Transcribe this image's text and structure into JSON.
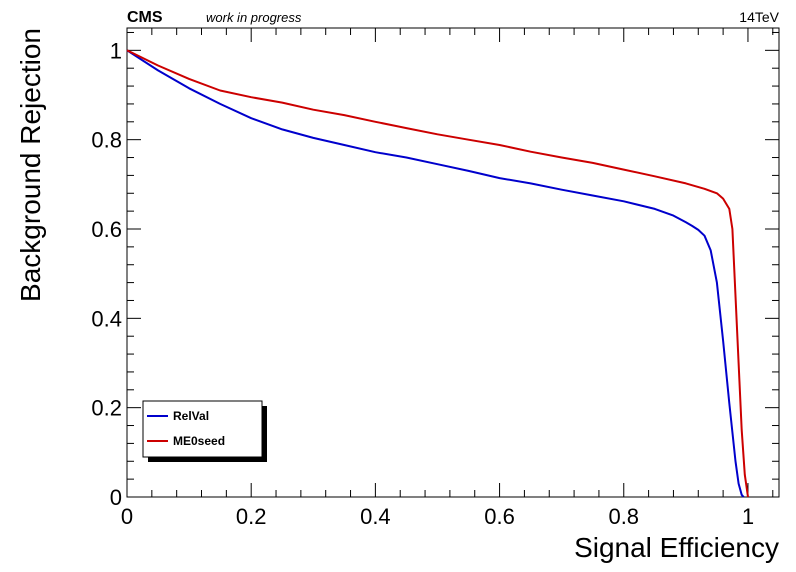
{
  "header": {
    "experiment": "CMS",
    "status": "work in progress",
    "energy": "14TeV"
  },
  "chart_data": {
    "type": "line",
    "xlabel": "Signal Efficiency",
    "ylabel": "Background Rejection",
    "xlim": [
      0,
      1.05
    ],
    "ylim": [
      0,
      1.05
    ],
    "x_ticks": [
      "0",
      "0.2",
      "0.4",
      "0.6",
      "0.8",
      "1"
    ],
    "y_ticks": [
      "0",
      "0.2",
      "0.4",
      "0.6",
      "0.8",
      "1"
    ],
    "grid": false,
    "legend_position": "bottom-left",
    "series": [
      {
        "name": "RelVal",
        "color": "#0000cc",
        "x": [
          0,
          0.05,
          0.1,
          0.15,
          0.2,
          0.25,
          0.3,
          0.35,
          0.4,
          0.45,
          0.5,
          0.55,
          0.6,
          0.65,
          0.7,
          0.75,
          0.8,
          0.85,
          0.88,
          0.9,
          0.91,
          0.92,
          0.93,
          0.94,
          0.95,
          0.96,
          0.97,
          0.98,
          0.985,
          0.99,
          0.993
        ],
        "y": [
          1.0,
          0.955,
          0.915,
          0.88,
          0.848,
          0.823,
          0.804,
          0.788,
          0.772,
          0.76,
          0.745,
          0.73,
          0.714,
          0.702,
          0.688,
          0.675,
          0.662,
          0.645,
          0.63,
          0.615,
          0.607,
          0.598,
          0.585,
          0.552,
          0.48,
          0.35,
          0.21,
          0.08,
          0.03,
          0.005,
          0.0
        ]
      },
      {
        "name": "ME0seed",
        "color": "#cc0000",
        "x": [
          0,
          0.05,
          0.1,
          0.15,
          0.2,
          0.25,
          0.3,
          0.35,
          0.4,
          0.45,
          0.5,
          0.55,
          0.6,
          0.65,
          0.7,
          0.75,
          0.8,
          0.85,
          0.9,
          0.93,
          0.95,
          0.96,
          0.97,
          0.975,
          0.98,
          0.985,
          0.99,
          0.995,
          1.0
        ],
        "y": [
          1.0,
          0.966,
          0.936,
          0.91,
          0.895,
          0.883,
          0.867,
          0.855,
          0.84,
          0.826,
          0.812,
          0.8,
          0.788,
          0.773,
          0.76,
          0.748,
          0.733,
          0.718,
          0.702,
          0.69,
          0.68,
          0.668,
          0.645,
          0.6,
          0.45,
          0.3,
          0.15,
          0.05,
          0.0
        ]
      }
    ]
  }
}
